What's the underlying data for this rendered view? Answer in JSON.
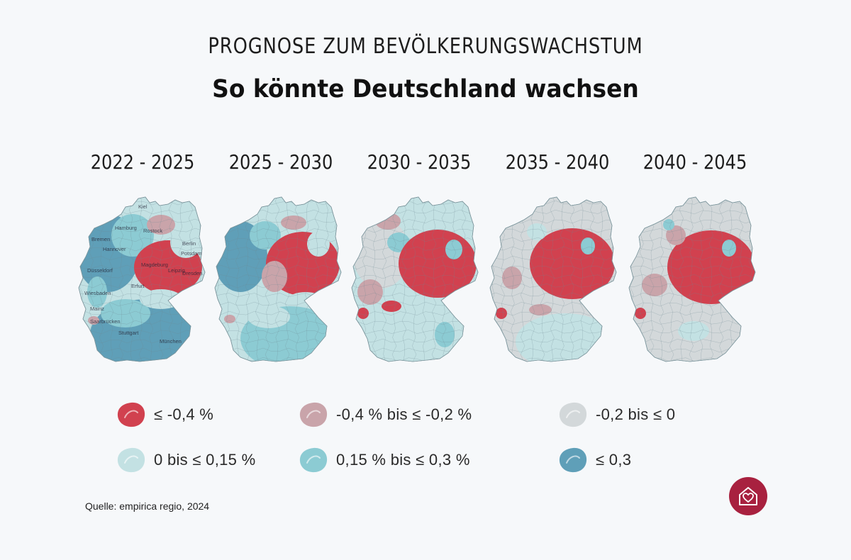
{
  "header": {
    "kicker": "PROGNOSE ZUM BEVÖLKERUNGSWACHSTUM",
    "title": "So könnte Deutschland wachsen"
  },
  "periods": [
    {
      "label": "2022 - 2025",
      "cities": [
        "Kiel",
        "Hamburg",
        "Rostock",
        "Berlin",
        "Potsdam",
        "Bremen",
        "Hannover",
        "Magdeburg",
        "Düsseldorf",
        "Leipzig",
        "Dresden",
        "Erfurt",
        "Wiesbaden",
        "Mainz",
        "Saarbrücken",
        "Stuttgart",
        "München"
      ]
    },
    {
      "label": "2025 - 2030"
    },
    {
      "label": "2030 - 2035"
    },
    {
      "label": "2035 - 2040"
    },
    {
      "label": "2040 - 2045"
    }
  ],
  "legend": [
    {
      "label": "≤ -0,4 %",
      "color": "#d1414f"
    },
    {
      "label": "-0,4 % bis ≤ -0,2 %",
      "color": "#c9a4aa"
    },
    {
      "label": "-0,2 bis ≤ 0",
      "color": "#d3d8da"
    },
    {
      "label": "0 bis ≤ 0,15 %",
      "color": "#c3e1e3"
    },
    {
      "label": "0,15 % bis ≤ 0,3 %",
      "color": "#8ccbd3"
    },
    {
      "label": "≤ 0,3",
      "color": "#5f9fb8"
    }
  ],
  "source": "Quelle: empirica regio, 2024",
  "logo_icon": "house-heart-icon"
}
